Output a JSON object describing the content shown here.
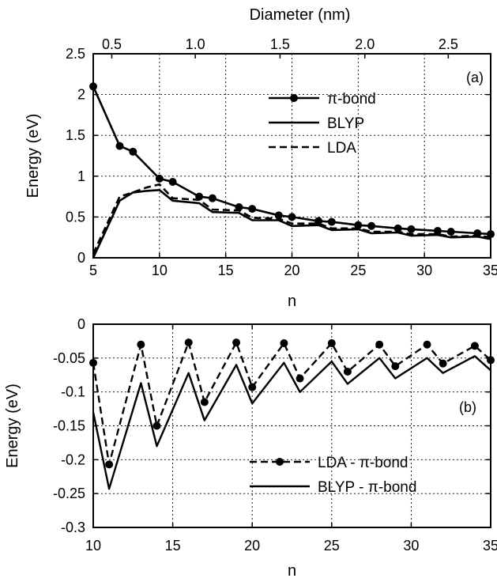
{
  "chart_data": [
    {
      "panel_label": "(a)",
      "type": "line",
      "xlabel": "n",
      "ylabel": "Energy (eV)",
      "top_xlabel": "Diameter (nm)",
      "xlim": [
        5,
        35
      ],
      "ylim": [
        0,
        2.5
      ],
      "x_ticks": [
        "5",
        "10",
        "15",
        "20",
        "25",
        "30",
        "35"
      ],
      "y_ticks": [
        "0",
        "0.5",
        "1",
        "1.5",
        "2",
        "2.5"
      ],
      "top_ticks": [
        "0.5",
        "1.0",
        "1.5",
        "2.0",
        "2.5"
      ],
      "top_tick_n": [
        6.4,
        12.7,
        19.1,
        25.5,
        31.8
      ],
      "grid": true,
      "legend_position": "top-right",
      "series": [
        {
          "name": "π-bond",
          "style": "solid-markers",
          "x": [
            5,
            7,
            8,
            10,
            11,
            13,
            14,
            16,
            17,
            19,
            20,
            22,
            23,
            25,
            26,
            28,
            29,
            31,
            32,
            34,
            35
          ],
          "y": [
            2.1,
            1.37,
            1.3,
            0.97,
            0.93,
            0.75,
            0.73,
            0.62,
            0.6,
            0.52,
            0.5,
            0.45,
            0.44,
            0.4,
            0.39,
            0.36,
            0.35,
            0.33,
            0.32,
            0.3,
            0.29
          ]
        },
        {
          "name": "BLYP",
          "style": "solid",
          "x": [
            5,
            7,
            8,
            9,
            10,
            11,
            13,
            14,
            16,
            17,
            19,
            20,
            22,
            23,
            25,
            26,
            28,
            29,
            31,
            32,
            34,
            35
          ],
          "y": [
            0.0,
            0.7,
            0.8,
            0.82,
            0.83,
            0.7,
            0.67,
            0.56,
            0.55,
            0.46,
            0.46,
            0.39,
            0.4,
            0.34,
            0.35,
            0.3,
            0.31,
            0.27,
            0.28,
            0.25,
            0.26,
            0.23
          ]
        },
        {
          "name": "LDA",
          "style": "dashed",
          "x": [
            5,
            7,
            8,
            9,
            10,
            11,
            13,
            14,
            16,
            17,
            19,
            20,
            22,
            23,
            25,
            26,
            28,
            29,
            31,
            32,
            34,
            35
          ],
          "y": [
            0.05,
            0.75,
            0.8,
            0.86,
            0.9,
            0.73,
            0.71,
            0.59,
            0.58,
            0.49,
            0.48,
            0.42,
            0.42,
            0.36,
            0.36,
            0.32,
            0.32,
            0.29,
            0.29,
            0.26,
            0.27,
            0.25
          ]
        }
      ]
    },
    {
      "panel_label": "(b)",
      "type": "line",
      "xlabel": "n",
      "ylabel": "Energy (eV)",
      "xlim": [
        10,
        35
      ],
      "ylim": [
        -0.3,
        0
      ],
      "x_ticks": [
        "10",
        "15",
        "20",
        "25",
        "30",
        "35"
      ],
      "y_ticks": [
        "0",
        "-0.05",
        "-0.1",
        "-0.15",
        "-0.2",
        "-0.25",
        "-0.3"
      ],
      "grid": true,
      "legend_position": "bottom-center",
      "series": [
        {
          "name": "LDA - π-bond",
          "style": "dashed-markers",
          "x": [
            10,
            11,
            13,
            14,
            16,
            17,
            19,
            20,
            22,
            23,
            25,
            26,
            28,
            29,
            31,
            32,
            34,
            35
          ],
          "y": [
            -0.057,
            -0.207,
            -0.03,
            -0.15,
            -0.027,
            -0.115,
            -0.027,
            -0.093,
            -0.028,
            -0.08,
            -0.028,
            -0.07,
            -0.03,
            -0.062,
            -0.03,
            -0.058,
            -0.032,
            -0.053
          ]
        },
        {
          "name": "BLYP - π-bond",
          "style": "solid",
          "x": [
            10,
            11,
            13,
            14,
            16,
            17,
            19,
            20,
            22,
            23,
            25,
            26,
            28,
            29,
            31,
            32,
            34,
            35
          ],
          "y": [
            -0.13,
            -0.243,
            -0.087,
            -0.18,
            -0.072,
            -0.142,
            -0.06,
            -0.117,
            -0.057,
            -0.1,
            -0.055,
            -0.088,
            -0.05,
            -0.08,
            -0.05,
            -0.072,
            -0.047,
            -0.068
          ]
        }
      ]
    }
  ]
}
